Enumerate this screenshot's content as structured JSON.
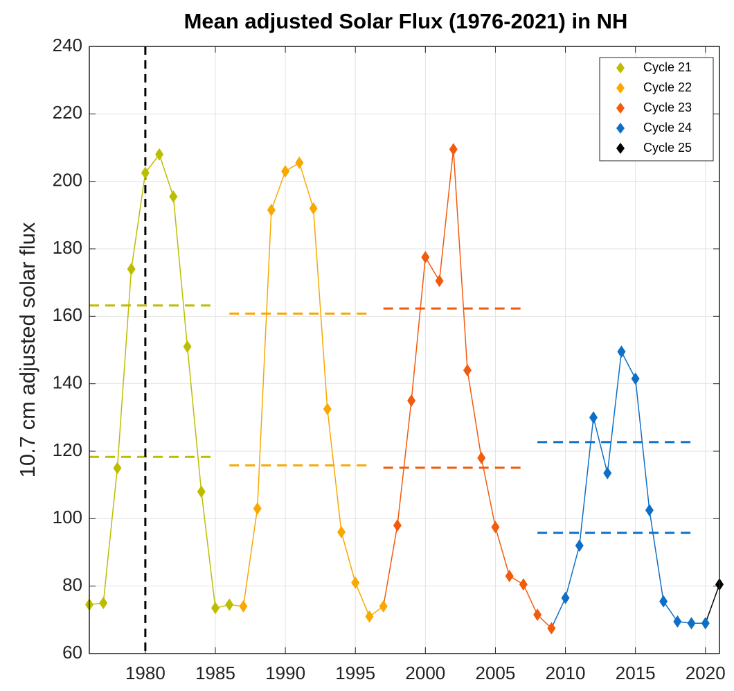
{
  "chart_data": {
    "type": "line",
    "title": "Mean adjusted Solar Flux (1976-2021) in NH",
    "y_label": "10.7 cm adjusted solar flux",
    "xlim": [
      1976,
      2021
    ],
    "xticks": [
      1980,
      1985,
      1990,
      1995,
      2000,
      2005,
      2010,
      2015,
      2020
    ],
    "ylim": [
      60,
      240
    ],
    "yticks": [
      60,
      80,
      100,
      120,
      140,
      160,
      180,
      200,
      220,
      240
    ],
    "grid": true,
    "legend": "upper right",
    "vline": 1980,
    "series": [
      {
        "name": "Cycle 21",
        "color": "#bdbd00",
        "x": [
          1976,
          1977,
          1978,
          1979,
          1980,
          1981,
          1982,
          1983,
          1984,
          1985,
          1986
        ],
        "values": [
          74.5,
          75,
          115,
          174,
          202.5,
          208,
          195.5,
          151,
          108,
          73.5,
          74.5
        ],
        "levels": [
          163.2,
          118.3
        ],
        "level_range": [
          1976,
          1985
        ]
      },
      {
        "name": "Cycle 22",
        "color": "#f9a800",
        "x": [
          1987,
          1988,
          1989,
          1990,
          1991,
          1992,
          1993,
          1994,
          1995,
          1996,
          1997
        ],
        "values": [
          74,
          103,
          191.5,
          203,
          205.5,
          192,
          132.5,
          96,
          81,
          71,
          74
        ],
        "levels": [
          160.8,
          115.8
        ],
        "level_range": [
          1986,
          1996
        ]
      },
      {
        "name": "Cycle 23",
        "color": "#f25a0c",
        "x": [
          1998,
          1999,
          2000,
          2001,
          2002,
          2003,
          2004,
          2005,
          2006,
          2007,
          2008,
          2009
        ],
        "values": [
          98,
          135,
          177.5,
          170.5,
          209.5,
          144,
          118,
          97.5,
          83,
          80.5,
          71.5,
          67.5
        ],
        "levels": [
          162.3,
          115.1
        ],
        "level_range": [
          1997,
          2007
        ]
      },
      {
        "name": "Cycle 24",
        "color": "#0f6fc6",
        "x": [
          2010,
          2011,
          2012,
          2013,
          2014,
          2015,
          2016,
          2017,
          2018,
          2019,
          2020
        ],
        "values": [
          76.5,
          92,
          130,
          113.5,
          149.5,
          141.5,
          102.5,
          75.5,
          69.5,
          69,
          69
        ],
        "levels": [
          122.7,
          95.8
        ],
        "level_range": [
          2008,
          2019
        ]
      },
      {
        "name": "Cycle 25",
        "color": "#000000",
        "x": [
          2021
        ],
        "values": [
          80.5
        ]
      }
    ]
  }
}
